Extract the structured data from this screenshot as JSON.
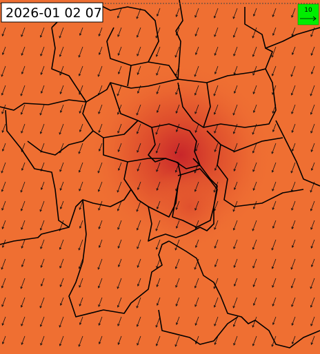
{
  "map": {
    "timestamp": "2026-01 02 07",
    "wind_legend": {
      "label": "10"
    }
  }
}
